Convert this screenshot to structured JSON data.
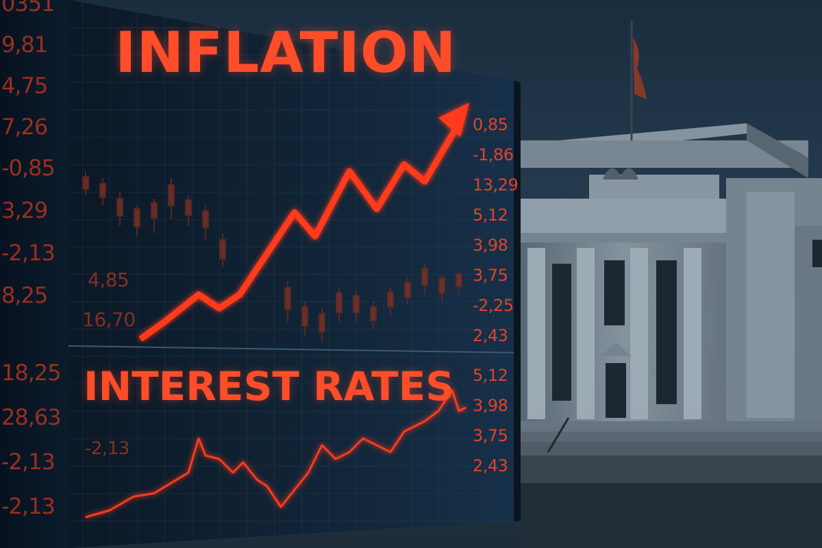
{
  "headline": {
    "top": "INFLATION",
    "bottom": "INTEREST RATES"
  },
  "left_ticker": [
    "0351",
    "9,81",
    "4,75",
    "7,26",
    "-0,85",
    "3,29",
    "-2,13",
    "8,25",
    "18,25",
    "28,63",
    "-2,13",
    "-2,13"
  ],
  "inner_values": [
    "4,85",
    "16,70",
    "-2,13"
  ],
  "inflation_axis": [
    "0,85",
    "-1,86",
    "13,29",
    "5,12",
    "3,98",
    "3,75",
    "-2,25",
    "2,43"
  ],
  "rates_axis": [
    "5,12",
    "3,98",
    "3,75",
    "2,43"
  ],
  "colors": {
    "accent": "#ff4d2a",
    "sky": "#1c3246",
    "stone": "#6f7f8c"
  },
  "icons": [
    "upward-trend-arrow-icon",
    "flag-icon",
    "eagle-statue-icon"
  ]
}
